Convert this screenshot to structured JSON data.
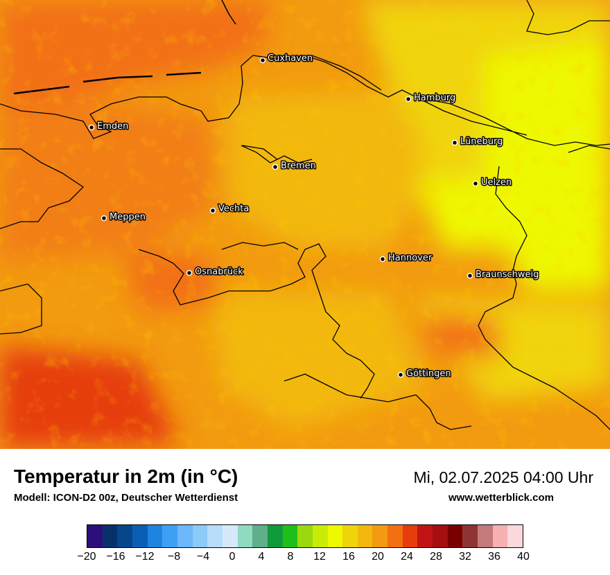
{
  "map": {
    "cities": [
      {
        "name": "Cuxhaven"
      },
      {
        "name": "Hamburg"
      },
      {
        "name": "Emden"
      },
      {
        "name": "Lüneburg"
      },
      {
        "name": "Bremen"
      },
      {
        "name": "Uelzen"
      },
      {
        "name": "Vechta"
      },
      {
        "name": "Meppen"
      },
      {
        "name": "Hannover"
      },
      {
        "name": "Osnabrück"
      },
      {
        "name": "Braunschweig"
      },
      {
        "name": "Göttingen"
      }
    ]
  },
  "footer": {
    "title": "Temperatur in 2m (in °C)",
    "model": "Modell: ICON-D2 00z, Deutscher Wetterdienst",
    "datetime": "Mi, 02.07.2025 04:00 Uhr",
    "website": "www.wetterblick.com"
  },
  "legend": {
    "colors": [
      "#2c0f7a",
      "#08306b",
      "#08468c",
      "#0a5fb4",
      "#1f83e0",
      "#3ea0f5",
      "#6db8fa",
      "#8ccaf8",
      "#b8dcfb",
      "#d6e9fb",
      "#8fdac0",
      "#5fae8c",
      "#119a3b",
      "#1fbf1a",
      "#9bd80f",
      "#c9ec07",
      "#eef800",
      "#f0d40a",
      "#f2b80c",
      "#f29a10",
      "#f27012",
      "#e63c0e",
      "#c21414",
      "#a50f0f",
      "#7a0000",
      "#8e3434",
      "#c47a7a",
      "#f5b0b0",
      "#fbd8dc"
    ],
    "ticks": [
      "−20",
      "−16",
      "−12",
      "−8",
      "−4",
      "0",
      "4",
      "8",
      "12",
      "16",
      "20",
      "24",
      "28",
      "32",
      "36",
      "40"
    ]
  }
}
